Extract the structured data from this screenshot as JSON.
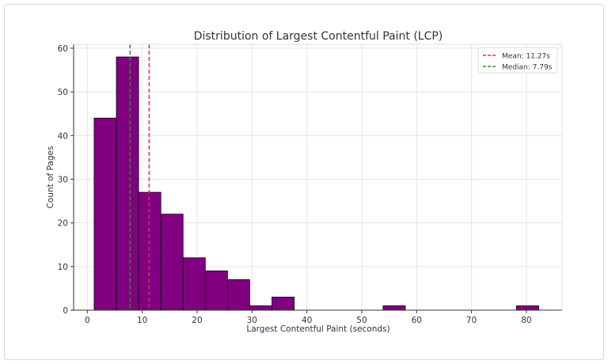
{
  "chart_data": {
    "type": "bar",
    "subtype": "histogram",
    "title": "Distribution of Largest Contentful Paint (LCP)",
    "xlabel": "Largest Contentful Paint (seconds)",
    "ylabel": "Count of Pages",
    "bin_start": 1.24,
    "bin_width": 4.05,
    "counts": [
      44,
      58,
      27,
      22,
      12,
      9,
      7,
      1,
      3,
      0,
      0,
      0,
      0,
      1,
      0,
      0,
      0,
      0,
      0,
      1
    ],
    "xlim": [
      -2.5,
      86.5
    ],
    "ylim": [
      0,
      60.9
    ],
    "xticks": [
      0,
      10,
      20,
      30,
      40,
      50,
      60,
      70,
      80
    ],
    "yticks": [
      0,
      10,
      20,
      30,
      40,
      50,
      60
    ],
    "grid": true,
    "bar_color": "#800080",
    "edge_color": "#000000",
    "reference_lines": [
      {
        "label": "Mean: 11.27s",
        "value": 11.27,
        "color": "#e0303a",
        "style": "dashed"
      },
      {
        "label": "Median: 7.79s",
        "value": 7.79,
        "color": "#2e8b2e",
        "style": "dashed"
      }
    ],
    "legend": "top-right"
  }
}
